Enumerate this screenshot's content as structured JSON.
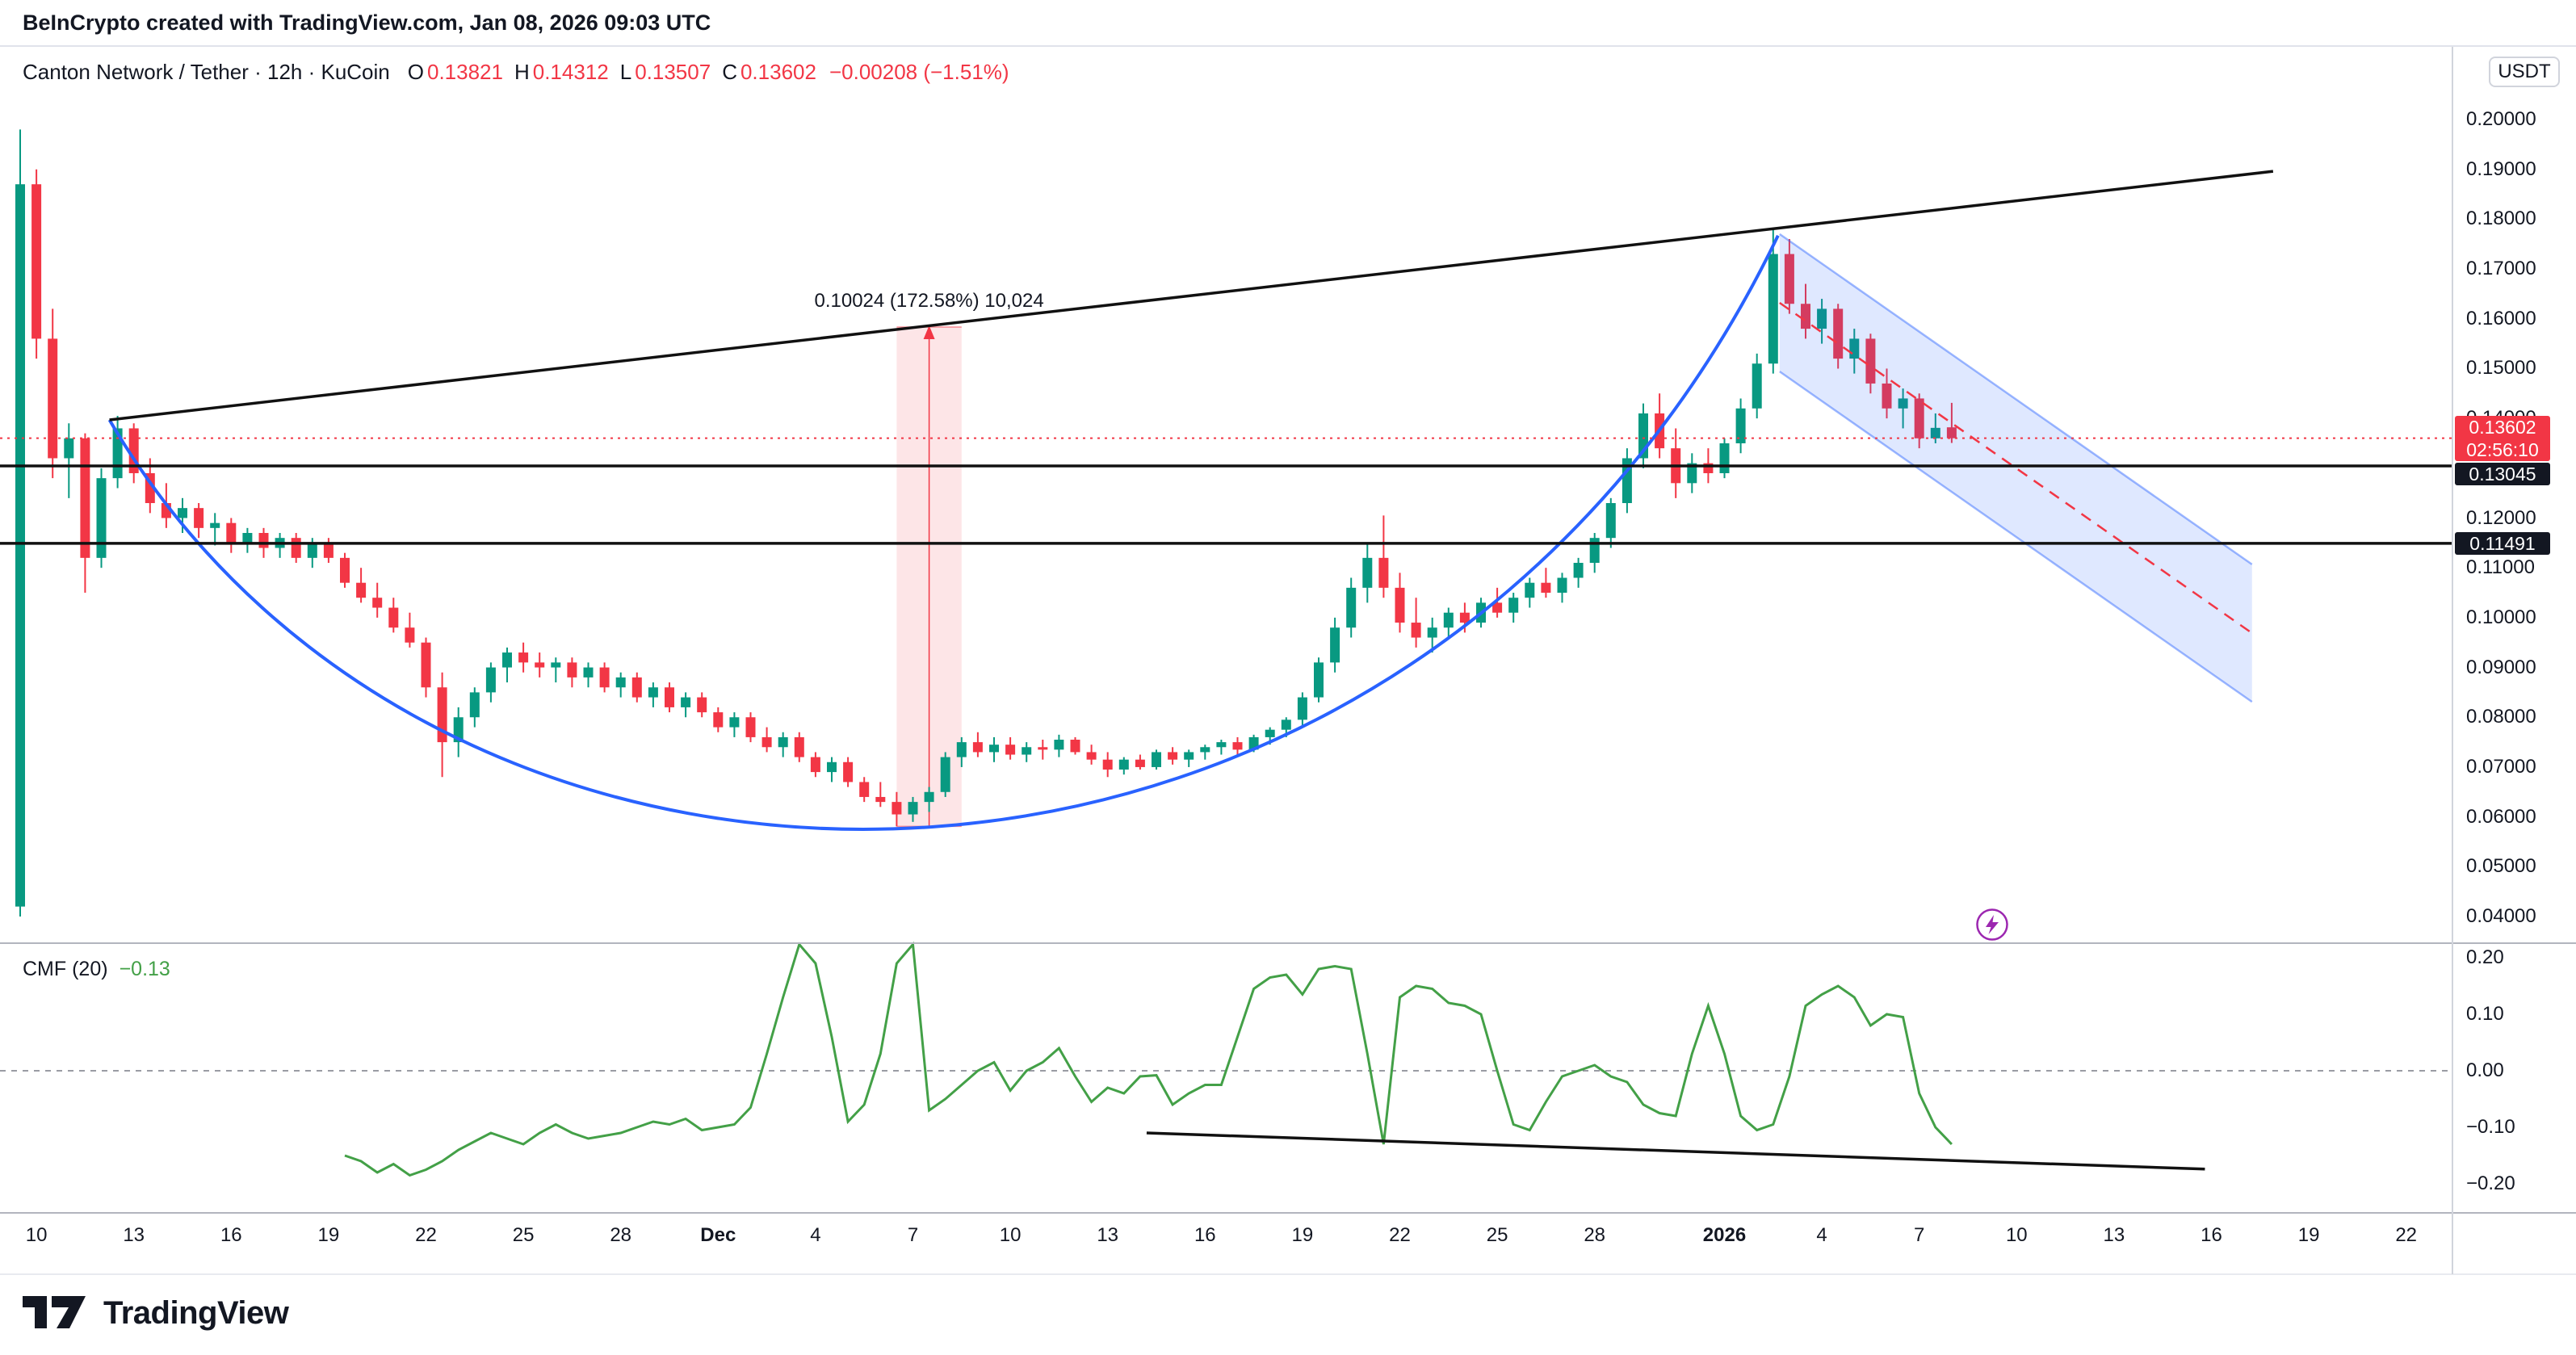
{
  "meta": {
    "attribution": "BeInCrypto created with TradingView.com, Jan 08, 2026 09:03 UTC"
  },
  "toolbar": {
    "currency_button": "USDT"
  },
  "legend": {
    "symbol_title": "Canton Network / Tether · 12h · KuCoin",
    "ohlc": [
      {
        "label": "O",
        "value": "0.13821"
      },
      {
        "label": "H",
        "value": "0.14312"
      },
      {
        "label": "L",
        "value": "0.13507"
      },
      {
        "label": "C",
        "value": "0.13602"
      }
    ],
    "change": "−0.00208 (−1.51%)"
  },
  "indicator_legend": {
    "name": "CMF (20)",
    "value": "−0.13"
  },
  "price_axis": {
    "badges": [
      {
        "type": "last",
        "text": "0.13602",
        "sub": "02:56:10",
        "price": 0.13602
      },
      {
        "type": "level",
        "text": "0.13045",
        "price": 0.13045
      },
      {
        "type": "level",
        "text": "0.11491",
        "price": 0.11491
      }
    ]
  },
  "footer": {
    "brand": "TradingView"
  },
  "colors": {
    "up": "#089981",
    "down": "#F23645",
    "accent_blue": "#2962FF",
    "cmf_line": "#43A047",
    "badge_dark": "#131722",
    "channel_fill": "rgba(41,98,255,0.15)",
    "channel_edge": "rgba(41,98,255,0.45)",
    "measure_fill": "rgba(242,54,69,0.13)",
    "divider": "#B2B5BE",
    "zero_line": "#787B86",
    "black_line": "#111111",
    "purple": "#9C27B0"
  },
  "chart_data": {
    "type": "candlestick",
    "symbol": "Canton Network / Tether",
    "interval": "12h",
    "exchange": "KuCoin",
    "ohlc_last": {
      "o": 0.13821,
      "h": 0.14312,
      "l": 0.13507,
      "c": 0.13602,
      "change": -0.00208,
      "change_pct": -1.51
    },
    "price_ylim": [
      0.04,
      0.2
    ],
    "price_ticks": [
      0.2,
      0.19,
      0.18,
      0.17,
      0.16,
      0.15,
      0.14,
      0.12,
      0.11,
      0.1,
      0.09,
      0.08,
      0.07,
      0.06,
      0.05,
      0.04
    ],
    "time_ticks": [
      {
        "i": 1,
        "label": "10"
      },
      {
        "i": 7,
        "label": "13"
      },
      {
        "i": 13,
        "label": "16"
      },
      {
        "i": 19,
        "label": "19"
      },
      {
        "i": 25,
        "label": "22"
      },
      {
        "i": 31,
        "label": "25"
      },
      {
        "i": 37,
        "label": "28"
      },
      {
        "i": 43,
        "label": "Dec",
        "bold": true
      },
      {
        "i": 49,
        "label": "4"
      },
      {
        "i": 55,
        "label": "7"
      },
      {
        "i": 61,
        "label": "10"
      },
      {
        "i": 67,
        "label": "13"
      },
      {
        "i": 73,
        "label": "16"
      },
      {
        "i": 79,
        "label": "19"
      },
      {
        "i": 85,
        "label": "22"
      },
      {
        "i": 91,
        "label": "25"
      },
      {
        "i": 97,
        "label": "28"
      },
      {
        "i": 105,
        "label": "2026",
        "bold": true
      },
      {
        "i": 111,
        "label": "4"
      },
      {
        "i": 117,
        "label": "7"
      },
      {
        "i": 123,
        "label": "10"
      },
      {
        "i": 129,
        "label": "13"
      },
      {
        "i": 135,
        "label": "16"
      },
      {
        "i": 141,
        "label": "19"
      },
      {
        "i": 147,
        "label": "22"
      }
    ],
    "candles": {
      "note": "12h bars, first bar Nov 9 12:00, last bar Jan 8 (current)",
      "values": [
        [
          0.042,
          0.198,
          0.04,
          0.187
        ],
        [
          0.187,
          0.19,
          0.152,
          0.156
        ],
        [
          0.156,
          0.162,
          0.128,
          0.132
        ],
        [
          0.132,
          0.139,
          0.124,
          0.136
        ],
        [
          0.136,
          0.137,
          0.105,
          0.112
        ],
        [
          0.112,
          0.13,
          0.11,
          0.128
        ],
        [
          0.128,
          0.1405,
          0.126,
          0.138
        ],
        [
          0.138,
          0.139,
          0.127,
          0.129
        ],
        [
          0.129,
          0.132,
          0.121,
          0.123
        ],
        [
          0.123,
          0.127,
          0.118,
          0.12
        ],
        [
          0.12,
          0.124,
          0.117,
          0.122
        ],
        [
          0.122,
          0.123,
          0.116,
          0.118
        ],
        [
          0.118,
          0.121,
          0.1145,
          0.119
        ],
        [
          0.119,
          0.12,
          0.113,
          0.115
        ],
        [
          0.115,
          0.118,
          0.113,
          0.117
        ],
        [
          0.117,
          0.118,
          0.112,
          0.114
        ],
        [
          0.114,
          0.117,
          0.112,
          0.116
        ],
        [
          0.116,
          0.117,
          0.111,
          0.112
        ],
        [
          0.112,
          0.116,
          0.11,
          0.115
        ],
        [
          0.115,
          0.116,
          0.111,
          0.112
        ],
        [
          0.112,
          0.113,
          0.106,
          0.107
        ],
        [
          0.107,
          0.11,
          0.103,
          0.104
        ],
        [
          0.104,
          0.107,
          0.1,
          0.102
        ],
        [
          0.102,
          0.104,
          0.097,
          0.098
        ],
        [
          0.098,
          0.101,
          0.094,
          0.095
        ],
        [
          0.095,
          0.096,
          0.084,
          0.086
        ],
        [
          0.086,
          0.089,
          0.068,
          0.075
        ],
        [
          0.075,
          0.082,
          0.072,
          0.08
        ],
        [
          0.08,
          0.086,
          0.078,
          0.085
        ],
        [
          0.085,
          0.091,
          0.083,
          0.09
        ],
        [
          0.09,
          0.094,
          0.087,
          0.093
        ],
        [
          0.093,
          0.095,
          0.089,
          0.091
        ],
        [
          0.091,
          0.093,
          0.088,
          0.09
        ],
        [
          0.09,
          0.092,
          0.087,
          0.091
        ],
        [
          0.091,
          0.092,
          0.086,
          0.088
        ],
        [
          0.088,
          0.091,
          0.086,
          0.09
        ],
        [
          0.09,
          0.091,
          0.085,
          0.086
        ],
        [
          0.086,
          0.089,
          0.084,
          0.088
        ],
        [
          0.088,
          0.089,
          0.083,
          0.084
        ],
        [
          0.084,
          0.087,
          0.082,
          0.086
        ],
        [
          0.086,
          0.087,
          0.081,
          0.082
        ],
        [
          0.082,
          0.085,
          0.08,
          0.084
        ],
        [
          0.084,
          0.085,
          0.08,
          0.081
        ],
        [
          0.081,
          0.082,
          0.077,
          0.078
        ],
        [
          0.078,
          0.081,
          0.076,
          0.08
        ],
        [
          0.08,
          0.081,
          0.075,
          0.076
        ],
        [
          0.076,
          0.078,
          0.073,
          0.074
        ],
        [
          0.074,
          0.077,
          0.072,
          0.076
        ],
        [
          0.076,
          0.077,
          0.071,
          0.072
        ],
        [
          0.072,
          0.073,
          0.068,
          0.069
        ],
        [
          0.069,
          0.072,
          0.067,
          0.071
        ],
        [
          0.071,
          0.072,
          0.066,
          0.067
        ],
        [
          0.067,
          0.068,
          0.063,
          0.064
        ],
        [
          0.064,
          0.067,
          0.062,
          0.063
        ],
        [
          0.063,
          0.065,
          0.0581,
          0.0605
        ],
        [
          0.0605,
          0.064,
          0.059,
          0.063
        ],
        [
          0.063,
          0.066,
          0.061,
          0.065
        ],
        [
          0.065,
          0.073,
          0.064,
          0.072
        ],
        [
          0.072,
          0.076,
          0.07,
          0.075
        ],
        [
          0.075,
          0.077,
          0.072,
          0.073
        ],
        [
          0.073,
          0.076,
          0.071,
          0.0745
        ],
        [
          0.0745,
          0.076,
          0.0715,
          0.0725
        ],
        [
          0.0725,
          0.075,
          0.071,
          0.074
        ],
        [
          0.074,
          0.0755,
          0.0715,
          0.0735
        ],
        [
          0.0735,
          0.0765,
          0.072,
          0.0755
        ],
        [
          0.0755,
          0.076,
          0.0725,
          0.073
        ],
        [
          0.073,
          0.0745,
          0.0705,
          0.0715
        ],
        [
          0.0715,
          0.073,
          0.068,
          0.0695
        ],
        [
          0.0695,
          0.072,
          0.0685,
          0.0715
        ],
        [
          0.0715,
          0.0725,
          0.0695,
          0.07
        ],
        [
          0.07,
          0.0735,
          0.0695,
          0.073
        ],
        [
          0.073,
          0.074,
          0.0705,
          0.0715
        ],
        [
          0.0715,
          0.0735,
          0.07,
          0.073
        ],
        [
          0.073,
          0.0745,
          0.0715,
          0.074
        ],
        [
          0.074,
          0.0755,
          0.0725,
          0.075
        ],
        [
          0.075,
          0.076,
          0.0725,
          0.0735
        ],
        [
          0.0735,
          0.0765,
          0.073,
          0.076
        ],
        [
          0.076,
          0.078,
          0.0745,
          0.0775
        ],
        [
          0.0775,
          0.08,
          0.076,
          0.0795
        ],
        [
          0.0795,
          0.085,
          0.078,
          0.084
        ],
        [
          0.084,
          0.092,
          0.083,
          0.091
        ],
        [
          0.091,
          0.1,
          0.089,
          0.098
        ],
        [
          0.098,
          0.108,
          0.096,
          0.106
        ],
        [
          0.106,
          0.115,
          0.103,
          0.112
        ],
        [
          0.112,
          0.1205,
          0.104,
          0.106
        ],
        [
          0.106,
          0.109,
          0.097,
          0.099
        ],
        [
          0.099,
          0.104,
          0.094,
          0.096
        ],
        [
          0.096,
          0.1,
          0.093,
          0.098
        ],
        [
          0.098,
          0.102,
          0.096,
          0.101
        ],
        [
          0.101,
          0.103,
          0.097,
          0.099
        ],
        [
          0.099,
          0.104,
          0.098,
          0.103
        ],
        [
          0.103,
          0.106,
          0.1,
          0.101
        ],
        [
          0.101,
          0.105,
          0.099,
          0.104
        ],
        [
          0.104,
          0.108,
          0.102,
          0.107
        ],
        [
          0.107,
          0.11,
          0.104,
          0.105
        ],
        [
          0.105,
          0.109,
          0.103,
          0.108
        ],
        [
          0.108,
          0.112,
          0.106,
          0.111
        ],
        [
          0.111,
          0.117,
          0.109,
          0.116
        ],
        [
          0.116,
          0.124,
          0.114,
          0.123
        ],
        [
          0.123,
          0.134,
          0.121,
          0.132
        ],
        [
          0.132,
          0.143,
          0.13,
          0.141
        ],
        [
          0.141,
          0.145,
          0.132,
          0.134
        ],
        [
          0.134,
          0.138,
          0.124,
          0.127
        ],
        [
          0.127,
          0.133,
          0.125,
          0.131
        ],
        [
          0.131,
          0.134,
          0.127,
          0.129
        ],
        [
          0.129,
          0.136,
          0.128,
          0.135
        ],
        [
          0.135,
          0.144,
          0.133,
          0.142
        ],
        [
          0.142,
          0.153,
          0.14,
          0.151
        ],
        [
          0.151,
          0.178,
          0.149,
          0.173
        ],
        [
          0.173,
          0.176,
          0.161,
          0.163
        ],
        [
          0.163,
          0.167,
          0.156,
          0.158
        ],
        [
          0.158,
          0.164,
          0.155,
          0.162
        ],
        [
          0.162,
          0.163,
          0.15,
          0.152
        ],
        [
          0.152,
          0.158,
          0.149,
          0.156
        ],
        [
          0.156,
          0.157,
          0.145,
          0.147
        ],
        [
          0.147,
          0.15,
          0.14,
          0.142
        ],
        [
          0.142,
          0.146,
          0.138,
          0.144
        ],
        [
          0.144,
          0.145,
          0.134,
          0.136
        ],
        [
          0.136,
          0.141,
          0.135,
          0.1381
        ],
        [
          0.13821,
          0.14312,
          0.13507,
          0.13602
        ]
      ]
    },
    "indicator": {
      "name": "CMF",
      "length": 20,
      "last": -0.13,
      "ylim": [
        -0.2,
        0.2
      ],
      "ticks": [
        0.2,
        0.1,
        0.0,
        -0.1,
        -0.2
      ],
      "start_index": 20,
      "values": [
        -0.15,
        -0.16,
        -0.18,
        -0.165,
        -0.185,
        -0.175,
        -0.16,
        -0.14,
        -0.125,
        -0.11,
        -0.12,
        -0.13,
        -0.11,
        -0.095,
        -0.11,
        -0.12,
        -0.115,
        -0.11,
        -0.1,
        -0.09,
        -0.095,
        -0.085,
        -0.105,
        -0.1,
        -0.095,
        -0.065,
        0.03,
        0.13,
        0.23,
        0.19,
        0.06,
        -0.09,
        -0.06,
        0.03,
        0.19,
        0.23,
        -0.07,
        -0.05,
        -0.025,
        0.0,
        0.015,
        -0.035,
        0.0,
        0.015,
        0.04,
        -0.01,
        -0.055,
        -0.03,
        -0.04,
        -0.01,
        -0.008,
        -0.06,
        -0.04,
        -0.025,
        -0.025,
        0.06,
        0.145,
        0.165,
        0.17,
        0.135,
        0.18,
        0.185,
        0.18,
        0.03,
        -0.13,
        0.13,
        0.15,
        0.145,
        0.12,
        0.115,
        0.1,
        0.0,
        -0.095,
        -0.105,
        -0.055,
        -0.01,
        0.0,
        0.01,
        -0.01,
        -0.02,
        -0.06,
        -0.075,
        -0.08,
        0.03,
        0.115,
        0.03,
        -0.08,
        -0.105,
        -0.095,
        -0.01,
        0.115,
        0.135,
        0.15,
        0.13,
        0.08,
        0.1,
        0.095,
        -0.04,
        -0.1,
        -0.13
      ]
    },
    "drawings": {
      "resistance_trendline": {
        "from": [
          5.5,
          0.1397
        ],
        "to": [
          138.8,
          0.1896
        ]
      },
      "rounded_bottom_curve": {
        "start": [
          5.5,
          0.1397
        ],
        "c1": [
          26.1,
          0.0246
        ],
        "c2": [
          85.8,
          0.0246
        ],
        "end": [
          108.3,
          0.1767
        ]
      },
      "descending_channel": {
        "top": {
          "from": [
            108.4,
            0.177
          ],
          "to": [
            137.5,
            0.1107
          ]
        },
        "bottom": {
          "from": [
            108.4,
            0.1494
          ],
          "to": [
            137.5,
            0.0831
          ]
        }
      },
      "horizontal_levels": [
        0.13045,
        0.11491
      ],
      "last_price_line": 0.13602,
      "measure": {
        "i_from": 54,
        "i_to": 58,
        "price_low": 0.05809,
        "price_high": 0.15833,
        "label": "0.10024 (172.58%) 10,024"
      },
      "cmf_trendline": {
        "from": [
          69.4,
          -0.11
        ],
        "to": [
          134.6,
          -0.174
        ]
      }
    }
  }
}
